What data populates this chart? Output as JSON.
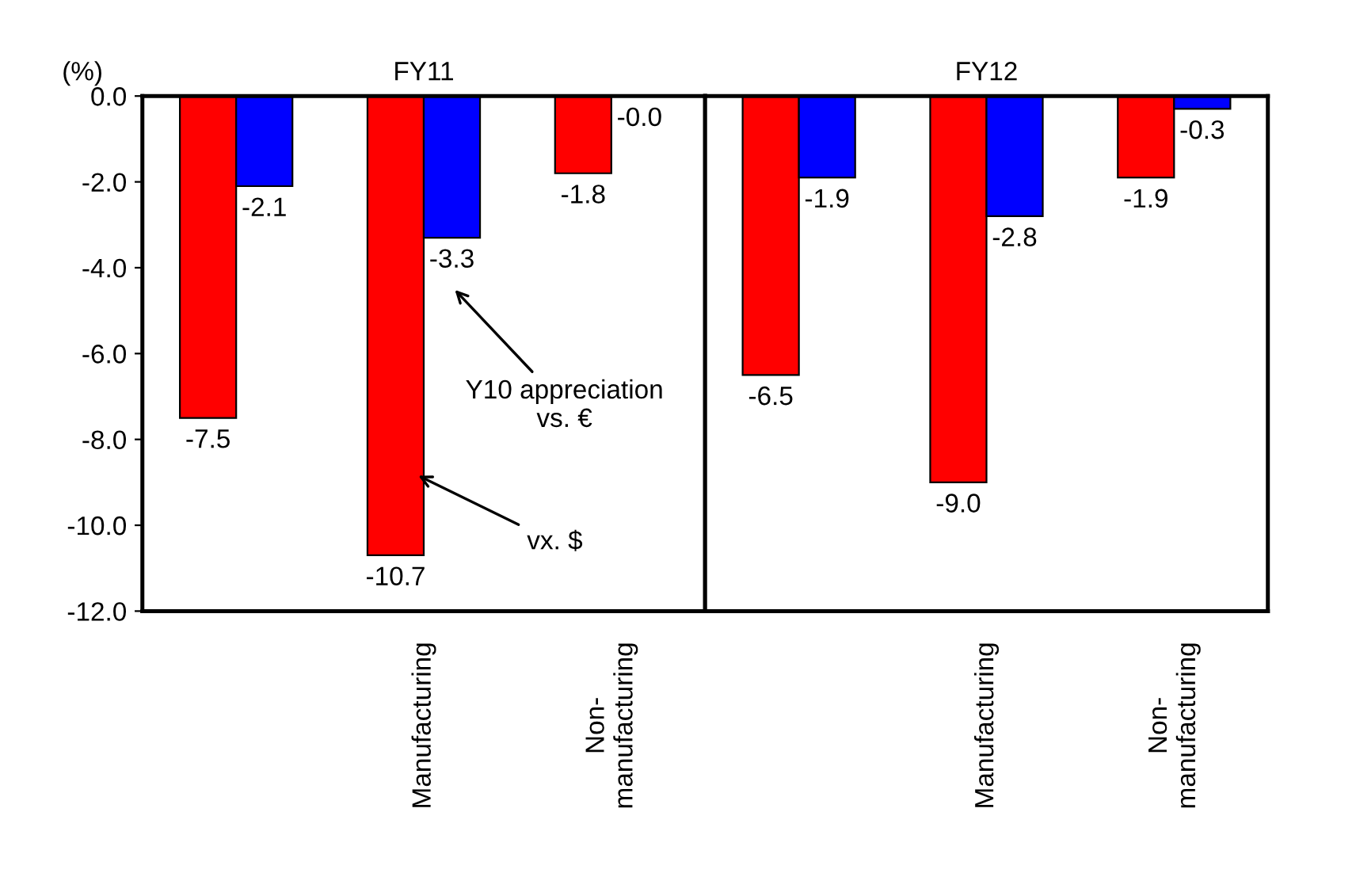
{
  "chart_data": [
    {
      "type": "bar",
      "title": "FY11",
      "ylabel": "(%)",
      "categories": [
        null,
        "Manufacturing",
        "Non-\nmanufacturing"
      ],
      "series": [
        {
          "color": "#ff0000",
          "values": [
            -7.5,
            -10.7,
            -1.8
          ],
          "value_labels": [
            "-7.5",
            "-10.7",
            "-1.8"
          ]
        },
        {
          "color": "#0000ff",
          "values": [
            -2.1,
            -3.3,
            -0.0
          ],
          "value_labels": [
            "-2.1",
            "-3.3",
            "-0.0"
          ]
        }
      ],
      "ylim": [
        -12,
        0
      ],
      "yticks": [
        {
          "value": 0,
          "label": "0.0"
        },
        {
          "value": -2,
          "label": "-2.0"
        },
        {
          "value": -4,
          "label": "-4.0"
        },
        {
          "value": -6,
          "label": "-6.0"
        },
        {
          "value": -8,
          "label": "-8.0"
        },
        {
          "value": -10,
          "label": "-10.0"
        },
        {
          "value": -12,
          "label": "-12.0"
        }
      ],
      "annotations": [
        "Y10 appreciation\nvs. €",
        {
          "text": "vx. $",
          "x": "Manufacturing",
          "y": -8.8
        }
      ],
      "grid": false,
      "legend": false
    },
    {
      "type": "bar",
      "title": "FY12",
      "categories": [
        null,
        "Manufacturing",
        "Non-\nmanufacturing"
      ],
      "series": [
        {
          "color": "#ff0000",
          "values": [
            -6.5,
            -9.0,
            -1.9
          ],
          "value_labels": [
            "-6.5",
            "-9.0",
            "-1.9"
          ]
        },
        {
          "color": "#0000ff",
          "values": [
            -1.9,
            -2.8,
            -0.3
          ],
          "value_labels": [
            "-1.9",
            "-2.8",
            "-0.3"
          ]
        }
      ],
      "ylim": [
        -12,
        0
      ],
      "tick_labels": "x",
      "grid": false,
      "legend": false
    }
  ]
}
